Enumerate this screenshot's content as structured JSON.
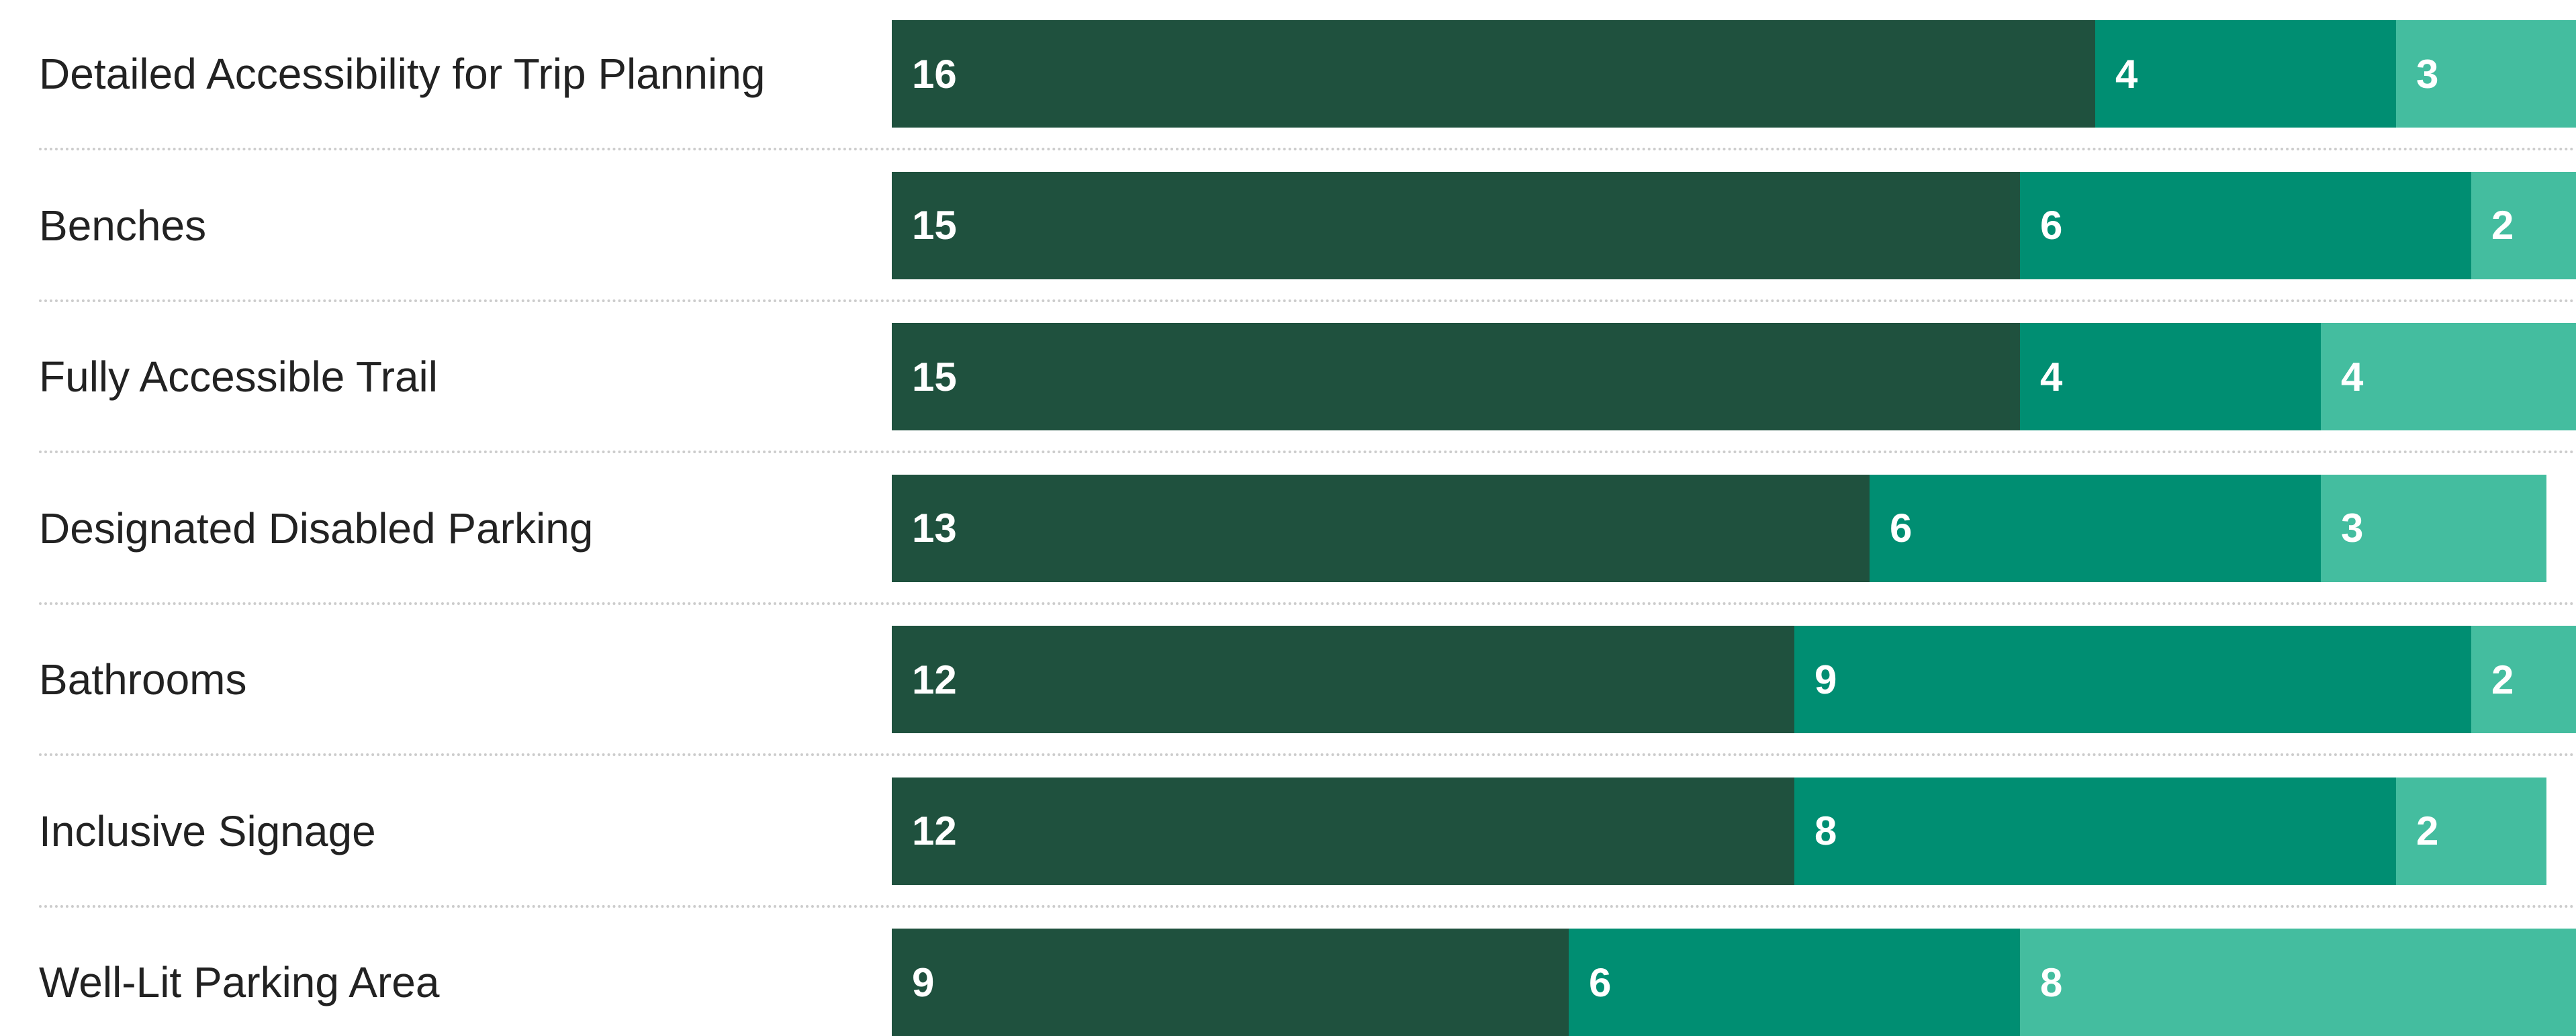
{
  "chart_data": {
    "type": "bar",
    "orientation": "horizontal",
    "stacked": true,
    "title": "",
    "xlabel": "",
    "ylabel": "",
    "xlim": [
      0,
      23
    ],
    "grid": false,
    "legend": "none",
    "categories": [
      "Detailed Accessibility for Trip Planning",
      "Benches",
      "Fully Accessible Trail",
      "Designated Disabled Parking",
      "Bathrooms",
      "Inclusive Signage",
      "Well-Lit Parking Area"
    ],
    "series": [
      {
        "values": [
          16,
          15,
          15,
          13,
          12,
          12,
          9
        ],
        "color": "#1f513e"
      },
      {
        "values": [
          4,
          6,
          4,
          6,
          9,
          8,
          6
        ],
        "color": "#008e72"
      },
      {
        "values": [
          3,
          2,
          4,
          3,
          2,
          2,
          8
        ],
        "color": "#44bd9f"
      }
    ]
  }
}
